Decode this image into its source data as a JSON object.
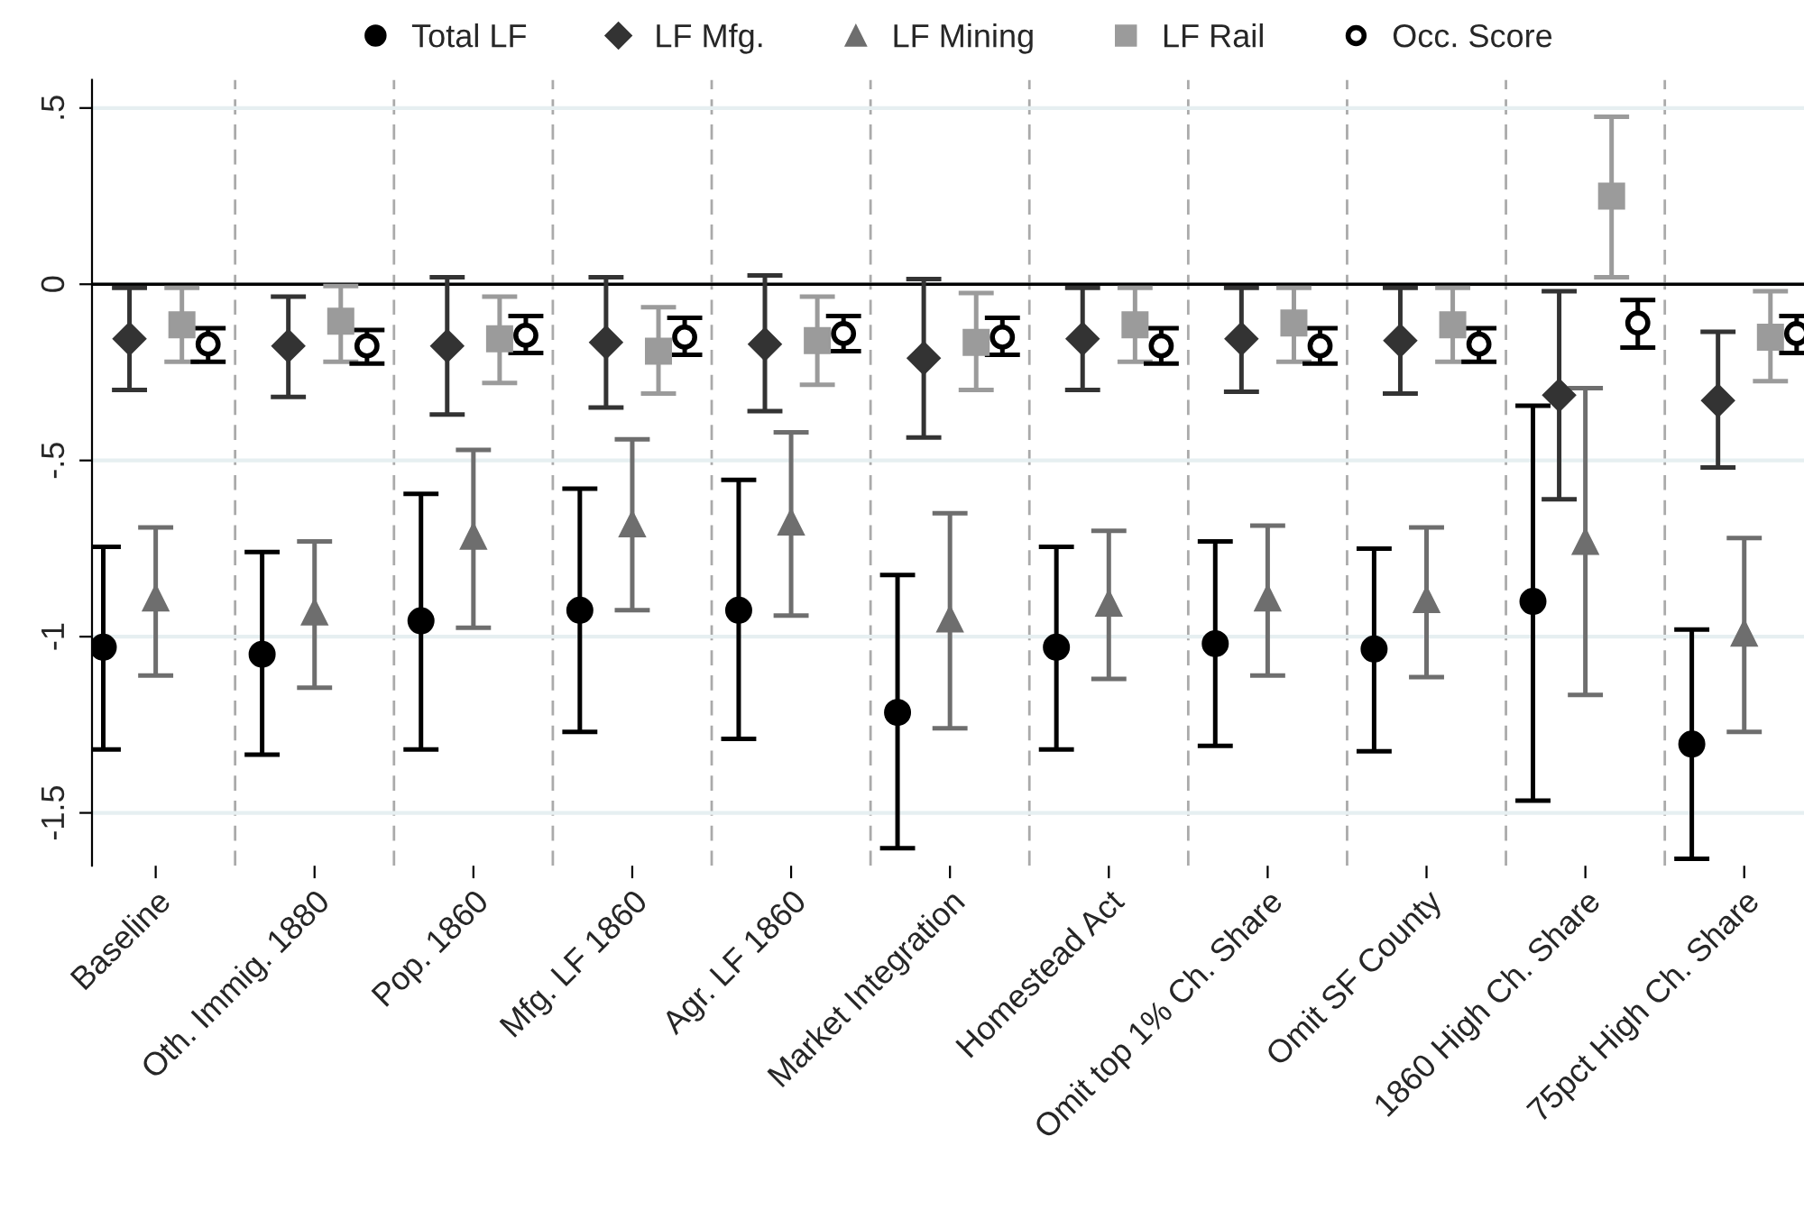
{
  "chart_data": {
    "type": "scatter",
    "categories": [
      "Baseline",
      "Oth. Immig. 1880",
      "Pop. 1860",
      "Mfg. LF 1860",
      "Agr. LF 1860",
      "Market Integration",
      "Homestead Act",
      "Omit top 1% Ch. Share",
      "Omit SF County",
      "1860 High Ch. Share",
      "75pct High Ch. Share"
    ],
    "series": [
      {
        "name": "Total LF",
        "color": "#000000",
        "marker": "circle",
        "values": [
          -1.03,
          -1.05,
          -0.955,
          -0.925,
          -0.925,
          -1.215,
          -1.03,
          -1.02,
          -1.035,
          -0.9,
          -1.305
        ],
        "errors": [
          [
            -1.32,
            -0.745
          ],
          [
            -1.335,
            -0.76
          ],
          [
            -1.32,
            -0.595
          ],
          [
            -1.27,
            -0.58
          ],
          [
            -1.29,
            -0.555
          ],
          [
            -1.6,
            -0.825
          ],
          [
            -1.32,
            -0.745
          ],
          [
            -1.31,
            -0.73
          ],
          [
            -1.325,
            -0.75
          ],
          [
            -1.465,
            -0.345
          ],
          [
            -1.63,
            -0.98
          ]
        ]
      },
      {
        "name": "LF Mfg.",
        "color": "#333333",
        "marker": "diamond",
        "values": [
          -0.155,
          -0.175,
          -0.175,
          -0.165,
          -0.17,
          -0.21,
          -0.155,
          -0.155,
          -0.16,
          -0.315,
          -0.33
        ],
        "errors": [
          [
            -0.3,
            -0.01
          ],
          [
            -0.32,
            -0.035
          ],
          [
            -0.37,
            0.02
          ],
          [
            -0.35,
            0.02
          ],
          [
            -0.36,
            0.025
          ],
          [
            -0.435,
            0.015
          ],
          [
            -0.3,
            -0.01
          ],
          [
            -0.305,
            -0.01
          ],
          [
            -0.31,
            -0.01
          ],
          [
            -0.61,
            -0.02
          ],
          [
            -0.52,
            -0.135
          ]
        ]
      },
      {
        "name": "LF Mining",
        "color": "#6e6e6e",
        "marker": "triangle",
        "values": [
          -0.89,
          -0.93,
          -0.715,
          -0.68,
          -0.675,
          -0.95,
          -0.905,
          -0.89,
          -0.895,
          -0.73,
          -0.99
        ],
        "errors": [
          [
            -1.11,
            -0.69
          ],
          [
            -1.145,
            -0.73
          ],
          [
            -0.975,
            -0.47
          ],
          [
            -0.925,
            -0.44
          ],
          [
            -0.94,
            -0.42
          ],
          [
            -1.26,
            -0.65
          ],
          [
            -1.12,
            -0.7
          ],
          [
            -1.11,
            -0.685
          ],
          [
            -1.115,
            -0.69
          ],
          [
            -1.165,
            -0.295
          ],
          [
            -1.27,
            -0.72
          ]
        ]
      },
      {
        "name": "LF Rail",
        "color": "#9b9b9b",
        "marker": "square",
        "values": [
          -0.115,
          -0.105,
          -0.155,
          -0.19,
          -0.16,
          -0.165,
          -0.115,
          -0.11,
          -0.115,
          0.25,
          -0.15
        ],
        "errors": [
          [
            -0.22,
            -0.01
          ],
          [
            -0.22,
            -0.005
          ],
          [
            -0.28,
            -0.035
          ],
          [
            -0.31,
            -0.065
          ],
          [
            -0.285,
            -0.035
          ],
          [
            -0.3,
            -0.025
          ],
          [
            -0.22,
            -0.01
          ],
          [
            -0.22,
            -0.01
          ],
          [
            -0.22,
            -0.01
          ],
          [
            0.02,
            0.475
          ],
          [
            -0.275,
            -0.02
          ]
        ]
      },
      {
        "name": "Occ. Score",
        "color": "#000000",
        "marker": "open circle",
        "values": [
          -0.17,
          -0.175,
          -0.145,
          -0.15,
          -0.14,
          -0.15,
          -0.175,
          -0.175,
          -0.17,
          -0.11,
          -0.14
        ],
        "errors": [
          [
            -0.22,
            -0.125
          ],
          [
            -0.225,
            -0.13
          ],
          [
            -0.195,
            -0.09
          ],
          [
            -0.2,
            -0.095
          ],
          [
            -0.19,
            -0.09
          ],
          [
            -0.2,
            -0.095
          ],
          [
            -0.225,
            -0.125
          ],
          [
            -0.225,
            -0.125
          ],
          [
            -0.22,
            -0.125
          ],
          [
            -0.18,
            -0.045
          ],
          [
            -0.195,
            -0.09
          ]
        ]
      }
    ],
    "ylim": [
      -1.65,
      0.58
    ],
    "yticks": [
      {
        "value": -1.5,
        "label": "-1.5"
      },
      -1,
      {
        "value": -0.5,
        "label": "-.5"
      },
      0,
      {
        "value": 0.5,
        "label": ".5"
      }
    ],
    "ref_lines": [
      {
        "axis": "y",
        "value": 0,
        "color": "#000000",
        "line_style": "solid"
      }
    ],
    "grid": true,
    "legend": "top"
  }
}
